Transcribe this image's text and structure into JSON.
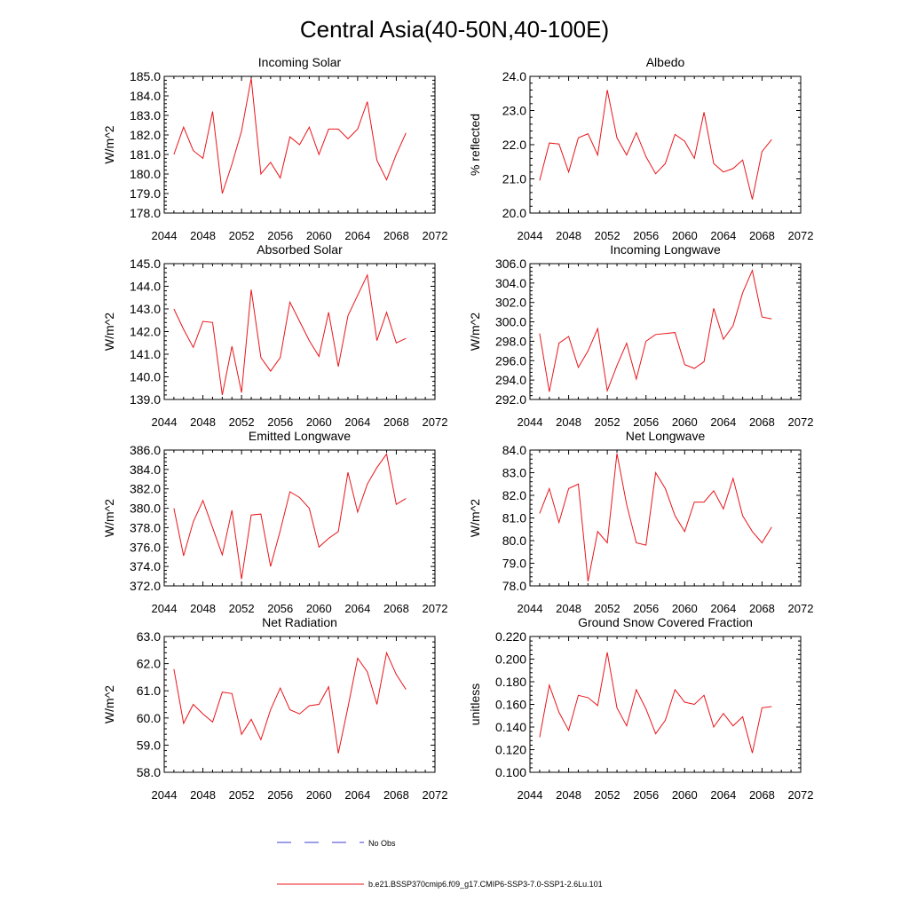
{
  "figure": {
    "title": "Central Asia(40-50N,40-100E)",
    "legend": [
      {
        "label": "No Obs",
        "color": "#3b3bd6",
        "style": "dashed"
      },
      {
        "label": "b.e21.BSSP370cmip6.f09_g17.CMIP6-SSP3-7.0-SSP1-2.6Lu.101",
        "color": "#e8151b",
        "style": "solid"
      }
    ]
  },
  "chart_data": [
    {
      "type": "line",
      "title": "Incoming Solar",
      "ylabel": "W/m^2",
      "xlim": [
        2044,
        2072
      ],
      "xticks": [
        "2044",
        "2048",
        "2052",
        "2056",
        "2060",
        "2064",
        "2068",
        "2072"
      ],
      "ylim": [
        178.0,
        185.0
      ],
      "yticks": [
        "178.0",
        "179.0",
        "180.0",
        "181.0",
        "182.0",
        "183.0",
        "184.0",
        "185.0"
      ],
      "series": [
        {
          "color": "#e8151b",
          "x": [
            2045,
            2046,
            2047,
            2048,
            2049,
            2050,
            2051,
            2052,
            2053,
            2054,
            2055,
            2056,
            2057,
            2058,
            2059,
            2060,
            2061,
            2062,
            2063,
            2064,
            2065,
            2066,
            2067,
            2068,
            2069
          ],
          "values": [
            181.0,
            182.4,
            181.2,
            180.8,
            183.2,
            179.0,
            180.5,
            182.2,
            184.9,
            180.0,
            180.6,
            179.8,
            181.9,
            181.5,
            182.4,
            181.0,
            182.3,
            182.3,
            181.8,
            182.3,
            183.7,
            180.7,
            179.7,
            181.0,
            182.1
          ]
        }
      ]
    },
    {
      "type": "line",
      "title": "Albedo",
      "ylabel": "% reflected",
      "xlim": [
        2044,
        2072
      ],
      "xticks": [
        "2044",
        "2048",
        "2052",
        "2056",
        "2060",
        "2064",
        "2068",
        "2072"
      ],
      "ylim": [
        20.0,
        24.0
      ],
      "yticks": [
        "20.0",
        "21.0",
        "22.0",
        "23.0",
        "24.0"
      ],
      "series": [
        {
          "color": "#e8151b",
          "x": [
            2045,
            2046,
            2047,
            2048,
            2049,
            2050,
            2051,
            2052,
            2053,
            2054,
            2055,
            2056,
            2057,
            2058,
            2059,
            2060,
            2061,
            2062,
            2063,
            2064,
            2065,
            2066,
            2067,
            2068,
            2069
          ],
          "values": [
            20.95,
            22.05,
            22.02,
            21.2,
            22.2,
            22.32,
            21.7,
            23.6,
            22.2,
            21.7,
            22.35,
            21.65,
            21.15,
            21.45,
            22.3,
            22.1,
            21.6,
            22.95,
            21.45,
            21.2,
            21.3,
            21.55,
            20.4,
            21.8,
            22.15
          ]
        }
      ]
    },
    {
      "type": "line",
      "title": "Absorbed Solar",
      "ylabel": "W/m^2",
      "xlim": [
        2044,
        2072
      ],
      "xticks": [
        "2044",
        "2048",
        "2052",
        "2056",
        "2060",
        "2064",
        "2068",
        "2072"
      ],
      "ylim": [
        139.0,
        145.0
      ],
      "yticks": [
        "139.0",
        "140.0",
        "141.0",
        "142.0",
        "143.0",
        "144.0",
        "145.0"
      ],
      "series": [
        {
          "color": "#e8151b",
          "x": [
            2045,
            2046,
            2047,
            2048,
            2049,
            2050,
            2051,
            2052,
            2053,
            2054,
            2055,
            2056,
            2057,
            2058,
            2059,
            2060,
            2061,
            2062,
            2063,
            2064,
            2065,
            2066,
            2067,
            2068,
            2069
          ],
          "values": [
            143.0,
            142.1,
            141.3,
            142.45,
            142.4,
            139.2,
            141.35,
            139.3,
            143.85,
            140.85,
            140.25,
            140.85,
            143.3,
            142.45,
            141.6,
            140.9,
            142.85,
            140.45,
            142.7,
            143.6,
            144.5,
            141.6,
            142.85,
            141.5,
            141.7
          ]
        }
      ]
    },
    {
      "type": "line",
      "title": "Incoming Longwave",
      "ylabel": "W/m^2",
      "xlim": [
        2044,
        2072
      ],
      "xticks": [
        "2044",
        "2048",
        "2052",
        "2056",
        "2060",
        "2064",
        "2068",
        "2072"
      ],
      "ylim": [
        292.0,
        306.0
      ],
      "yticks": [
        "292.0",
        "294.0",
        "296.0",
        "298.0",
        "300.0",
        "302.0",
        "304.0",
        "306.0"
      ],
      "series": [
        {
          "color": "#e8151b",
          "x": [
            2045,
            2046,
            2047,
            2048,
            2049,
            2050,
            2051,
            2052,
            2053,
            2054,
            2055,
            2056,
            2057,
            2058,
            2059,
            2060,
            2061,
            2062,
            2063,
            2064,
            2065,
            2066,
            2067,
            2068,
            2069
          ],
          "values": [
            298.8,
            292.8,
            297.8,
            298.5,
            295.3,
            297.0,
            299.3,
            292.9,
            295.5,
            297.8,
            294.1,
            298.0,
            298.7,
            298.8,
            298.9,
            295.6,
            295.2,
            295.9,
            301.4,
            298.2,
            299.6,
            303.0,
            305.3,
            300.5,
            300.3
          ]
        }
      ]
    },
    {
      "type": "line",
      "title": "Emitted Longwave",
      "ylabel": "W/m^2",
      "xlim": [
        2044,
        2072
      ],
      "xticks": [
        "2044",
        "2048",
        "2052",
        "2056",
        "2060",
        "2064",
        "2068",
        "2072"
      ],
      "ylim": [
        372.0,
        386.0
      ],
      "yticks": [
        "372.0",
        "374.0",
        "376.0",
        "378.0",
        "380.0",
        "382.0",
        "384.0",
        "386.0"
      ],
      "series": [
        {
          "color": "#e8151b",
          "x": [
            2045,
            2046,
            2047,
            2048,
            2049,
            2050,
            2051,
            2052,
            2053,
            2054,
            2055,
            2056,
            2057,
            2058,
            2059,
            2060,
            2061,
            2062,
            2063,
            2064,
            2065,
            2066,
            2067,
            2068,
            2069
          ],
          "values": [
            380.0,
            375.1,
            378.6,
            380.8,
            378.0,
            375.2,
            379.8,
            372.7,
            379.3,
            379.4,
            374.0,
            377.7,
            381.7,
            381.1,
            380.0,
            376.0,
            376.9,
            377.6,
            383.7,
            379.6,
            382.5,
            384.2,
            385.6,
            380.4,
            381.0
          ]
        }
      ]
    },
    {
      "type": "line",
      "title": "Net Longwave",
      "ylabel": "W/m^2",
      "xlim": [
        2044,
        2072
      ],
      "xticks": [
        "2044",
        "2048",
        "2052",
        "2056",
        "2060",
        "2064",
        "2068",
        "2072"
      ],
      "ylim": [
        78.0,
        84.0
      ],
      "yticks": [
        "78.0",
        "79.0",
        "80.0",
        "81.0",
        "82.0",
        "83.0",
        "84.0"
      ],
      "series": [
        {
          "color": "#e8151b",
          "x": [
            2045,
            2046,
            2047,
            2048,
            2049,
            2050,
            2051,
            2052,
            2053,
            2054,
            2055,
            2056,
            2057,
            2058,
            2059,
            2060,
            2061,
            2062,
            2063,
            2064,
            2065,
            2066,
            2067,
            2068,
            2069
          ],
          "values": [
            81.2,
            82.3,
            80.8,
            82.3,
            82.5,
            78.2,
            80.4,
            79.9,
            83.85,
            81.6,
            79.9,
            79.8,
            83.0,
            82.3,
            81.1,
            80.4,
            81.7,
            81.7,
            82.2,
            81.4,
            82.75,
            81.1,
            80.4,
            79.9,
            80.6
          ]
        }
      ]
    },
    {
      "type": "line",
      "title": "Net Radiation",
      "ylabel": "W/m^2",
      "xlim": [
        2044,
        2072
      ],
      "xticks": [
        "2044",
        "2048",
        "2052",
        "2056",
        "2060",
        "2064",
        "2068",
        "2072"
      ],
      "ylim": [
        58.0,
        63.0
      ],
      "yticks": [
        "58.0",
        "59.0",
        "60.0",
        "61.0",
        "62.0",
        "63.0"
      ],
      "series": [
        {
          "color": "#e8151b",
          "x": [
            2045,
            2046,
            2047,
            2048,
            2049,
            2050,
            2051,
            2052,
            2053,
            2054,
            2055,
            2056,
            2057,
            2058,
            2059,
            2060,
            2061,
            2062,
            2063,
            2064,
            2065,
            2066,
            2067,
            2068,
            2069
          ],
          "values": [
            61.8,
            59.8,
            60.5,
            60.15,
            59.85,
            60.95,
            60.9,
            59.4,
            59.95,
            59.2,
            60.3,
            61.1,
            60.3,
            60.15,
            60.45,
            60.5,
            61.15,
            58.7,
            60.4,
            62.2,
            61.7,
            60.5,
            62.4,
            61.6,
            61.05
          ]
        }
      ]
    },
    {
      "type": "line",
      "title": "Ground Snow Covered Fraction",
      "ylabel": "unitless",
      "xlim": [
        2044,
        2072
      ],
      "xticks": [
        "2044",
        "2048",
        "2052",
        "2056",
        "2060",
        "2064",
        "2068",
        "2072"
      ],
      "ylim": [
        0.1,
        0.22
      ],
      "yticks": [
        "0.100",
        "0.120",
        "0.140",
        "0.160",
        "0.180",
        "0.200",
        "0.220"
      ],
      "series": [
        {
          "color": "#e8151b",
          "x": [
            2045,
            2046,
            2047,
            2048,
            2049,
            2050,
            2051,
            2052,
            2053,
            2054,
            2055,
            2056,
            2057,
            2058,
            2059,
            2060,
            2061,
            2062,
            2063,
            2064,
            2065,
            2066,
            2067,
            2068,
            2069
          ],
          "values": [
            0.131,
            0.177,
            0.153,
            0.137,
            0.168,
            0.166,
            0.159,
            0.206,
            0.157,
            0.141,
            0.173,
            0.156,
            0.134,
            0.146,
            0.173,
            0.162,
            0.16,
            0.168,
            0.14,
            0.152,
            0.141,
            0.149,
            0.117,
            0.157,
            0.158
          ]
        }
      ]
    }
  ]
}
